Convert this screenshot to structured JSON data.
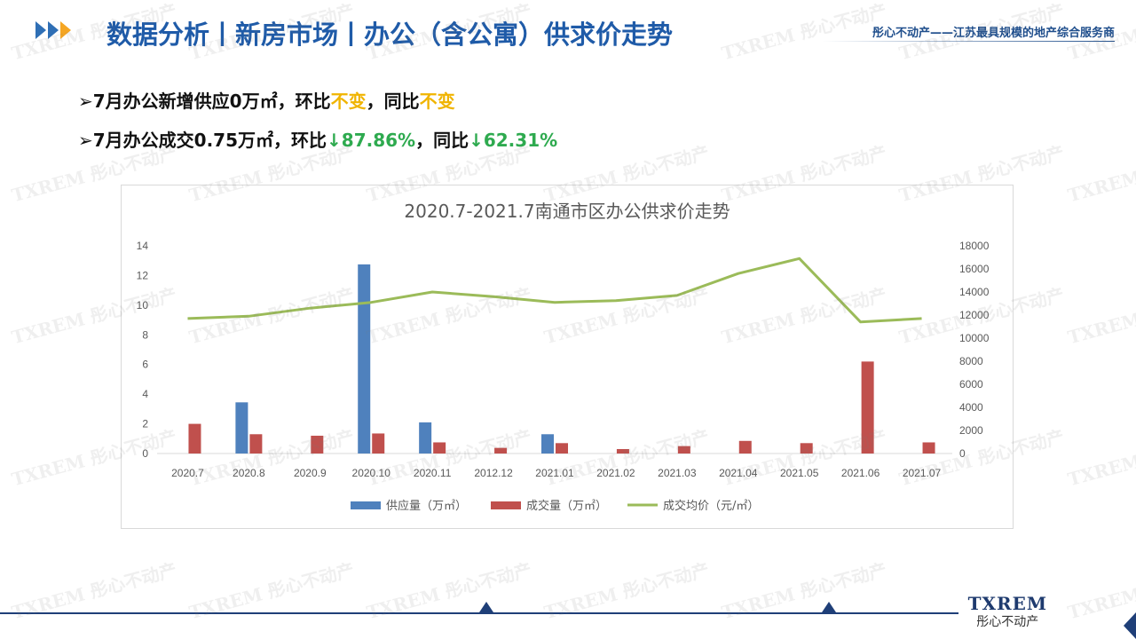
{
  "header": {
    "title": "数据分析丨新房市场丨办公（含公寓）供求价走势",
    "slogan": "彤心不动产——江苏最具规模的地产综合服务商"
  },
  "bullets": [
    {
      "prefix": "➢7月办公新增供应0万㎡，环比",
      "v1": "不变",
      "mid": "，同比",
      "v2": "不变"
    },
    {
      "prefix": "➢7月办公成交0.75万㎡，环比",
      "v1": "↓87.86%",
      "mid": "，同比",
      "v2": "↓62.31%"
    }
  ],
  "logo": {
    "text": "TXREM",
    "sub": "彤心不动产"
  },
  "watermark": "TXREM 彤心不动产",
  "colors": {
    "supply": "#4f81bd",
    "deal": "#c0504d",
    "price": "#9bbb59",
    "title": "#1f5ba8",
    "up_down": "#2eaa4f",
    "unchanged": "#f0b400"
  },
  "chart_data": {
    "type": "bar",
    "title": "2020.7-2021.7南通市区办公供求价走势",
    "categories": [
      "2020.7",
      "2020.8",
      "2020.9",
      "2020.10",
      "2020.11",
      "2012.12",
      "2021.01",
      "2021.02",
      "2021.03",
      "2021.04",
      "2021.05",
      "2021.06",
      "2021.07"
    ],
    "series": [
      {
        "name": "供应量（万㎡）",
        "type": "bar",
        "axis": "left",
        "values": [
          0,
          3.45,
          0,
          12.75,
          2.1,
          0,
          1.3,
          0,
          0,
          0,
          0,
          0,
          0
        ]
      },
      {
        "name": "成交量（万㎡）",
        "type": "bar",
        "axis": "left",
        "values": [
          2.0,
          1.3,
          1.2,
          1.35,
          0.75,
          0.38,
          0.7,
          0.3,
          0.5,
          0.85,
          0.7,
          6.2,
          0.75
        ]
      },
      {
        "name": "成交均价（元/㎡）",
        "type": "line",
        "axis": "right",
        "values": [
          11700,
          11900,
          12600,
          13100,
          14000,
          13600,
          13100,
          13250,
          13700,
          15600,
          16900,
          11400,
          11700
        ]
      }
    ],
    "ylim_left": [
      0,
      14
    ],
    "yticks_left": [
      "0",
      "2",
      "4",
      "6",
      "8",
      "10",
      "12",
      "14"
    ],
    "ylim_right": [
      0,
      18000
    ],
    "yticks_right": [
      "0",
      "2000",
      "4000",
      "6000",
      "8000",
      "10000",
      "12000",
      "14000",
      "16000",
      "18000"
    ],
    "grid": false,
    "legend": "bottom"
  }
}
